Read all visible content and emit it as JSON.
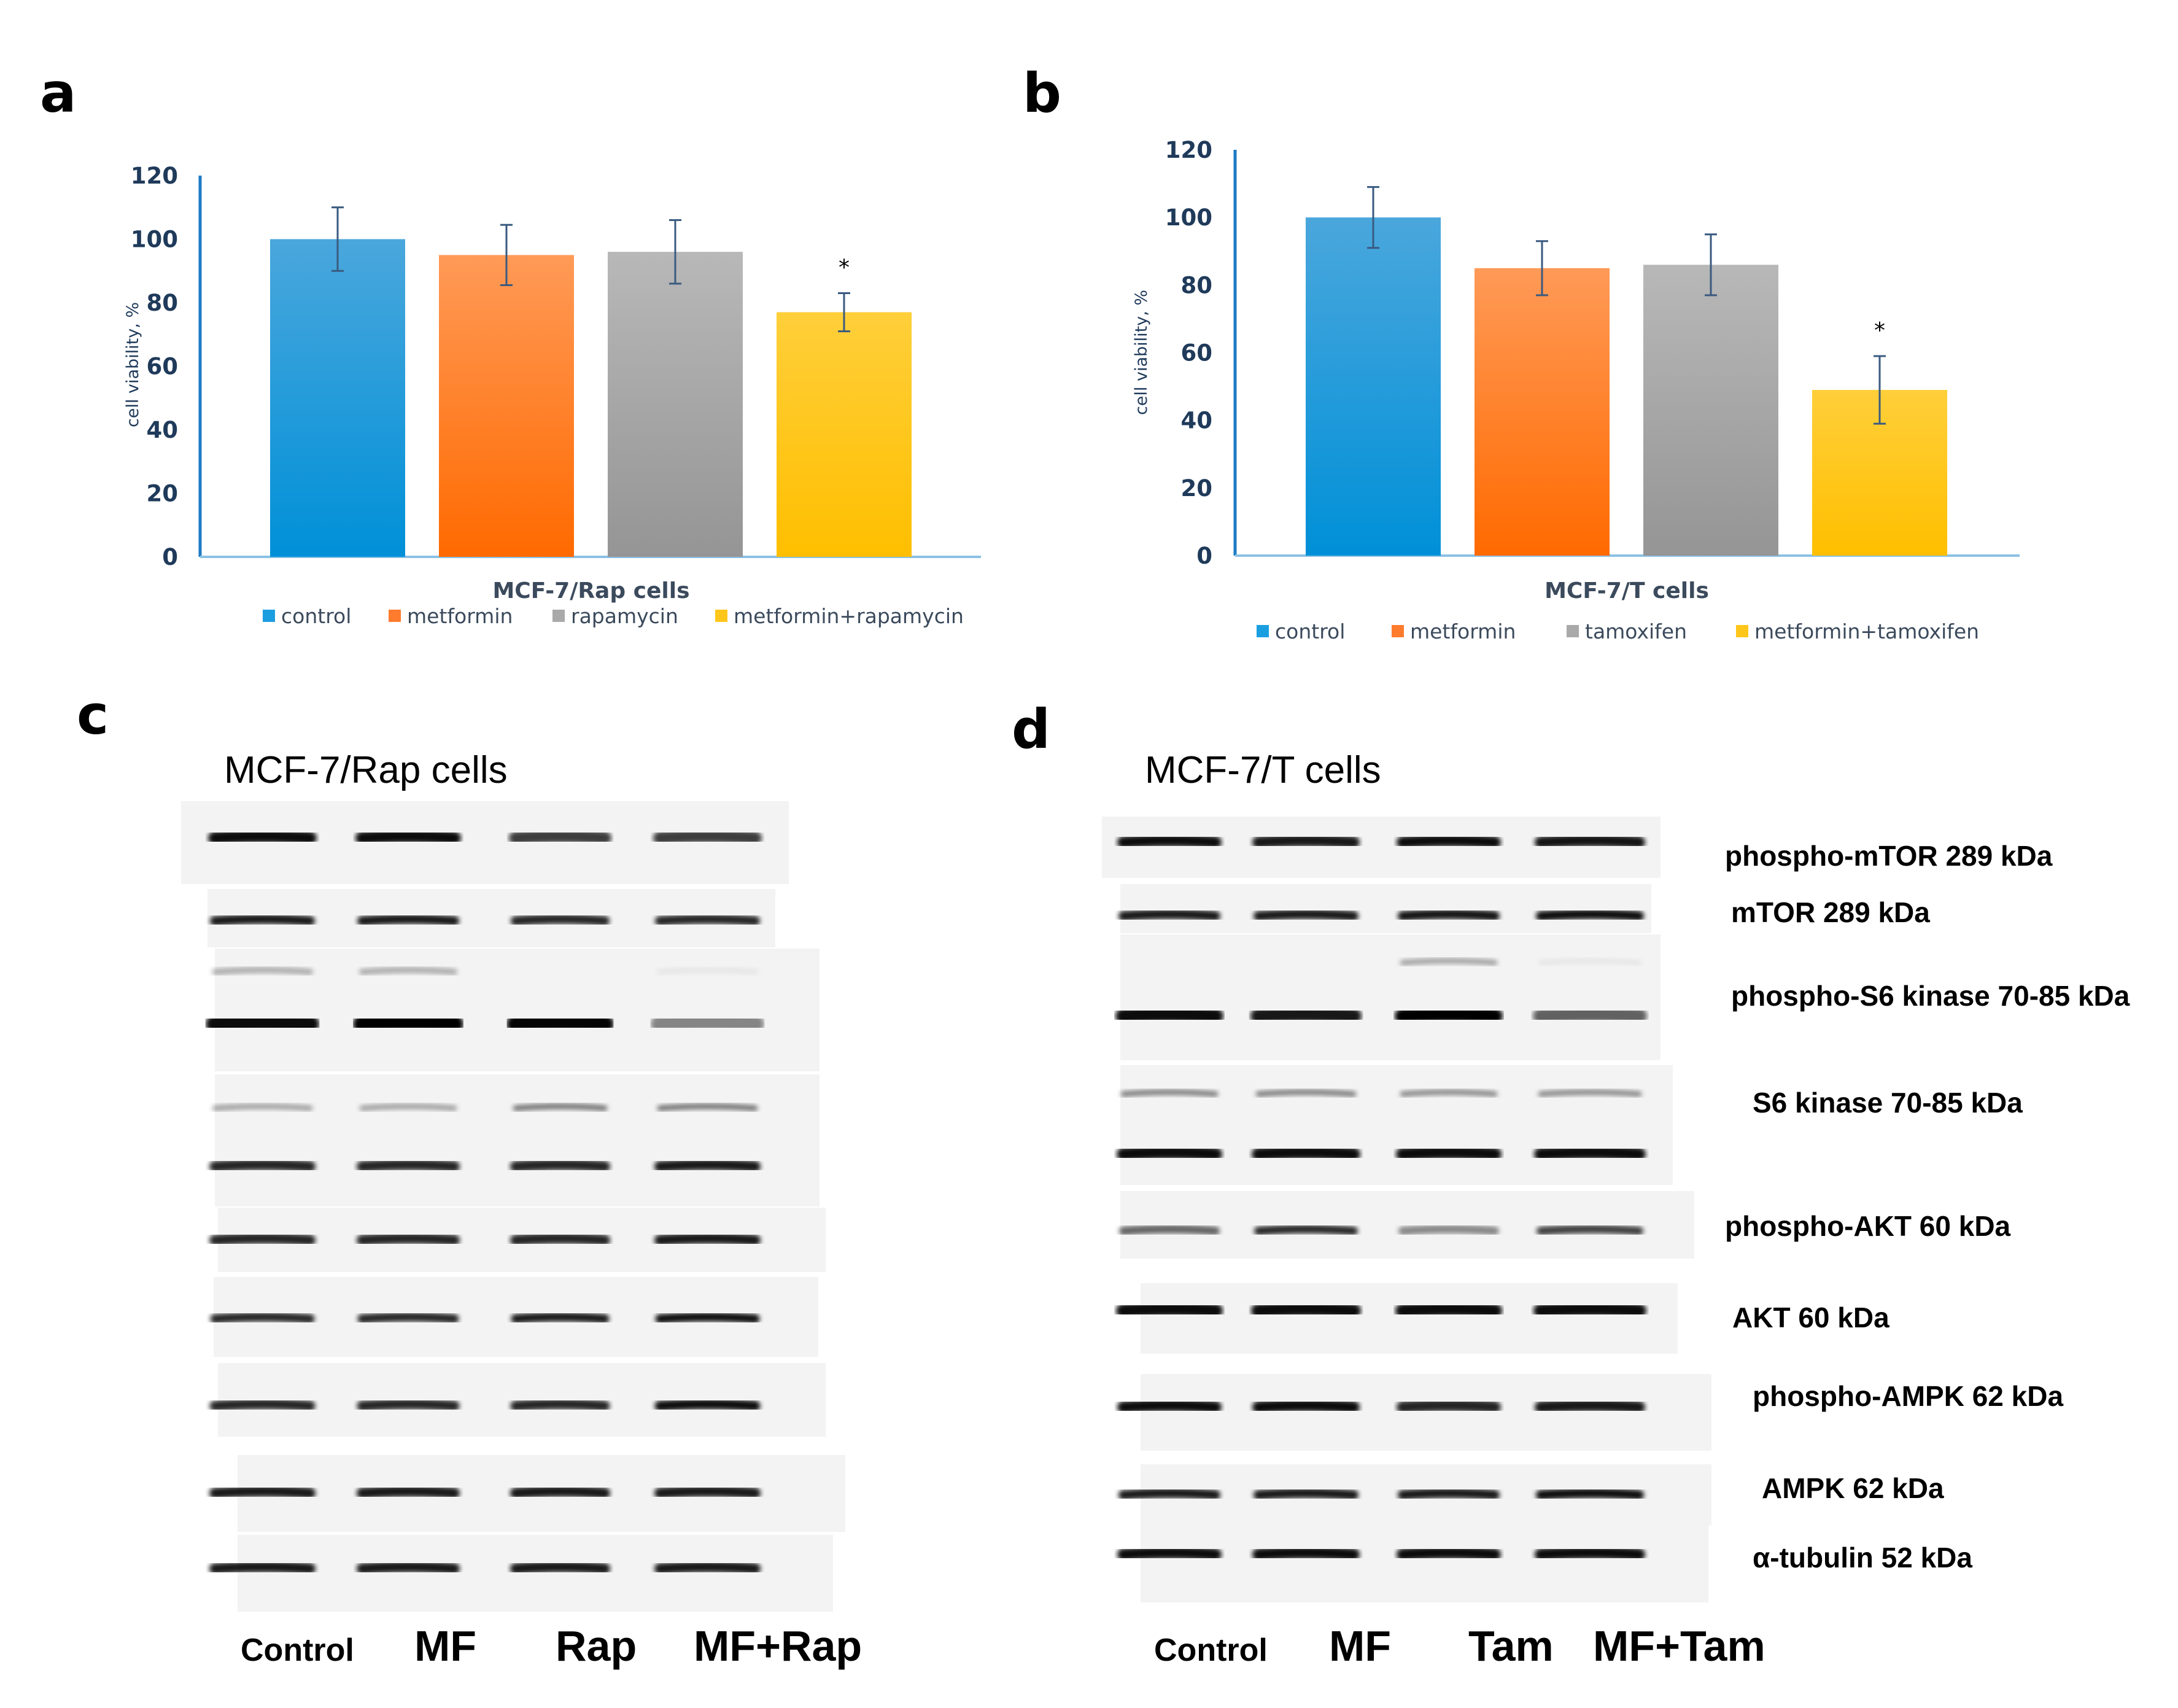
{
  "panels": {
    "a": "a",
    "b": "b",
    "c": "c",
    "d": "d"
  },
  "chart_data": [
    {
      "type": "bar",
      "panel": "a",
      "title": "",
      "xlabel": "MCF-7/Rap cells",
      "ylabel": "cell viability, %",
      "ylim": [
        0,
        120
      ],
      "yticks": [
        0,
        20,
        40,
        60,
        80,
        100,
        120
      ],
      "categories": [
        "control",
        "metformin",
        "rapamycin",
        "metformin+rapamycin"
      ],
      "values": [
        100,
        95,
        96,
        77
      ],
      "errors": [
        10,
        9.5,
        10,
        6
      ],
      "significance": [
        "",
        "",
        "",
        "*"
      ],
      "colors": [
        "#1a9ee0",
        "#ff7b2e",
        "#a9a9a9",
        "#ffc61a"
      ],
      "colors_light": [
        "#4aa7dc",
        "#ff9a57",
        "#b8b8b8",
        "#ffcf3a"
      ],
      "colors_dark": [
        "#0090d8",
        "#ff6a00",
        "#959595",
        "#ffbf00"
      ],
      "legend": "bottom"
    },
    {
      "type": "bar",
      "panel": "b",
      "title": "",
      "xlabel": "MCF-7/T cells",
      "ylabel": "cell viability, %",
      "ylim": [
        0,
        120
      ],
      "yticks": [
        0,
        20,
        40,
        60,
        80,
        100,
        120
      ],
      "categories": [
        "control",
        "metformin",
        "tamoxifen",
        "metformin+tamoxifen"
      ],
      "values": [
        100,
        85,
        86,
        49
      ],
      "errors": [
        9,
        8,
        9,
        10
      ],
      "significance": [
        "",
        "",
        "",
        "*"
      ],
      "colors": [
        "#1a9ee0",
        "#ff7b2e",
        "#a9a9a9",
        "#ffc61a"
      ],
      "colors_light": [
        "#4aa7dc",
        "#ff9a57",
        "#b8b8b8",
        "#ffcf3a"
      ],
      "colors_dark": [
        "#0090d8",
        "#ff6a00",
        "#959595",
        "#ffbf00"
      ],
      "legend": "bottom"
    }
  ],
  "blot_c": {
    "title": "MCF-7/Rap cells",
    "lanes": [
      "Control",
      "MF",
      "Rap",
      "MF+Rap"
    ]
  },
  "blot_d": {
    "title": "MCF-7/T cells",
    "lanes": [
      "Control",
      "MF",
      "Tam",
      "MF+Tam"
    ],
    "proteins": [
      "phospho-mTOR 289 kDa",
      "mTOR 289 kDa",
      "phospho-S6 kinase 70-85 kDa",
      "S6 kinase 70-85 kDa",
      "phospho-AKT 60 kDa",
      "AKT 60 kDa",
      "phospho-AMPK 62 kDa",
      "AMPK 62 kDa",
      "α-tubulin 52 kDa"
    ]
  }
}
